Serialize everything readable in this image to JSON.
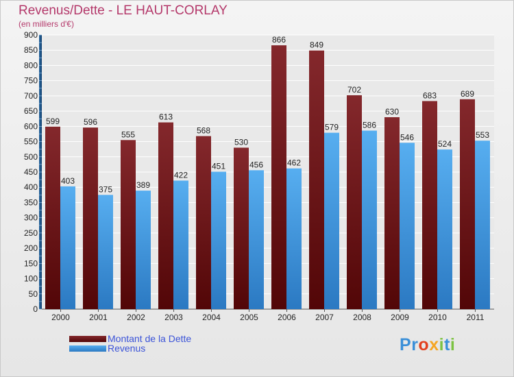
{
  "chart_data": {
    "type": "bar",
    "title": "Revenus/Dette - LE HAUT-CORLAY",
    "subtitle": "(en milliers d'€)",
    "categories": [
      "2000",
      "2001",
      "2002",
      "2003",
      "2004",
      "2005",
      "2006",
      "2007",
      "2008",
      "2009",
      "2010",
      "2011"
    ],
    "series": [
      {
        "name": "Montant de la Dette",
        "values": [
          599,
          596,
          555,
          613,
          568,
          530,
          866,
          849,
          702,
          630,
          683,
          689
        ],
        "color": "#7a1f23"
      },
      {
        "name": "Revenus",
        "values": [
          403,
          375,
          389,
          422,
          451,
          456,
          462,
          579,
          586,
          546,
          524,
          553
        ],
        "color": "#4aa3e6"
      }
    ],
    "ylim": [
      0,
      900
    ],
    "yticks": [
      0,
      50,
      100,
      150,
      200,
      250,
      300,
      350,
      400,
      450,
      500,
      550,
      600,
      650,
      700,
      750,
      800,
      850,
      900
    ],
    "grid": true,
    "legend_position": "bottom-left"
  },
  "logo": {
    "letters": [
      {
        "ch": "P",
        "color": "#3a8fd8"
      },
      {
        "ch": "r",
        "color": "#3a8fd8"
      },
      {
        "ch": "o",
        "color": "#e2401e"
      },
      {
        "ch": "x",
        "color": "#f5a623"
      },
      {
        "ch": "i",
        "color": "#7cc242"
      },
      {
        "ch": "t",
        "color": "#3a8fd8"
      },
      {
        "ch": "i",
        "color": "#7cc242"
      }
    ]
  }
}
